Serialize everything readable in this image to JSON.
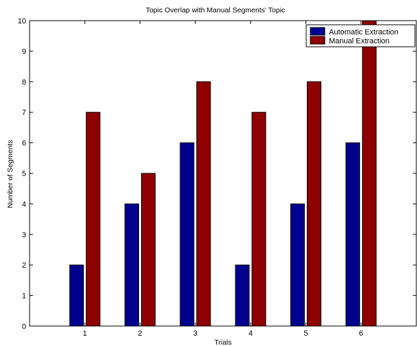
{
  "chart_data": {
    "type": "bar",
    "title": "Topic Overlap with Manual Segments' Topic",
    "xlabel": "Trials",
    "ylabel": "Number of Segments",
    "categories": [
      "1",
      "2",
      "3",
      "4",
      "5",
      "6"
    ],
    "xlim": [
      0,
      7
    ],
    "ylim": [
      0,
      10
    ],
    "yticks": [
      "0",
      "1",
      "2",
      "3",
      "4",
      "5",
      "6",
      "7",
      "8",
      "9",
      "10"
    ],
    "grid": false,
    "legend_position": "top-right",
    "series": [
      {
        "name": "Automatic Extraction",
        "color": "#00008f",
        "values": [
          2,
          4,
          6,
          2,
          4,
          6
        ]
      },
      {
        "name": "Manual Extraction",
        "color": "#8f0000",
        "values": [
          7,
          5,
          8,
          7,
          8,
          10
        ]
      }
    ]
  }
}
